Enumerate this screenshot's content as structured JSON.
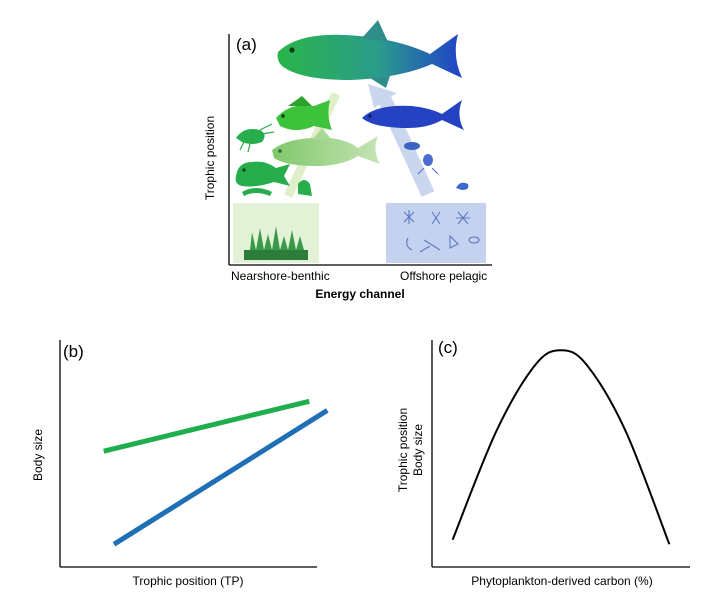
{
  "panel_a": {
    "label": "(a)",
    "ylabel": "Trophic position",
    "xtick_left": "Nearshore-benthic",
    "xtick_right": "Offshore pelagic",
    "xlabel": "Energy channel",
    "icons": [
      "trout-icon",
      "sunfish-icon",
      "minnow-icon",
      "shrimp-icon",
      "crayfish-icon",
      "sculpin-icon",
      "smelt-icon",
      "zooplankton-icon",
      "macrophyte-icon",
      "phytoplankton-icon"
    ],
    "colors": {
      "benthic": "#1aa84a",
      "pelagic": "#2451c9",
      "benthic_bg": "#e3f1d6",
      "pelagic_bg": "#c5d2ef"
    }
  },
  "panel_b": {
    "label": "(b)",
    "ylabel": "Body size",
    "xlabel": "Trophic position (TP)"
  },
  "panel_c": {
    "label": "(c)",
    "ylabel_line1": "Trophic position",
    "ylabel_line2": "Body size",
    "xlabel": "Phytoplankton-derived carbon (%)"
  },
  "chart_data": [
    {
      "type": "line",
      "panel": "b",
      "xlabel": "Trophic position (TP)",
      "ylabel": "Body size",
      "xlim": [
        0,
        10
      ],
      "ylim": [
        0,
        10
      ],
      "series": [
        {
          "color": "#1fae4e",
          "x": [
            1.7,
            9.7
          ],
          "y": [
            5.1,
            7.3
          ]
        },
        {
          "color": "#1e6fb5",
          "x": [
            2.1,
            10.4
          ],
          "y": [
            1.0,
            6.9
          ]
        }
      ]
    },
    {
      "type": "line",
      "panel": "c",
      "xlabel": "Phytoplankton-derived carbon (%)",
      "ylabel": "Trophic position / Body size",
      "xlim": [
        0,
        100
      ],
      "ylim": [
        0,
        10
      ],
      "series": [
        {
          "color": "#000000",
          "x": [
            8,
            25,
            40,
            50,
            60,
            75,
            92
          ],
          "y": [
            1.2,
            6.0,
            8.9,
            9.55,
            8.9,
            6.0,
            1.0
          ]
        }
      ]
    }
  ]
}
